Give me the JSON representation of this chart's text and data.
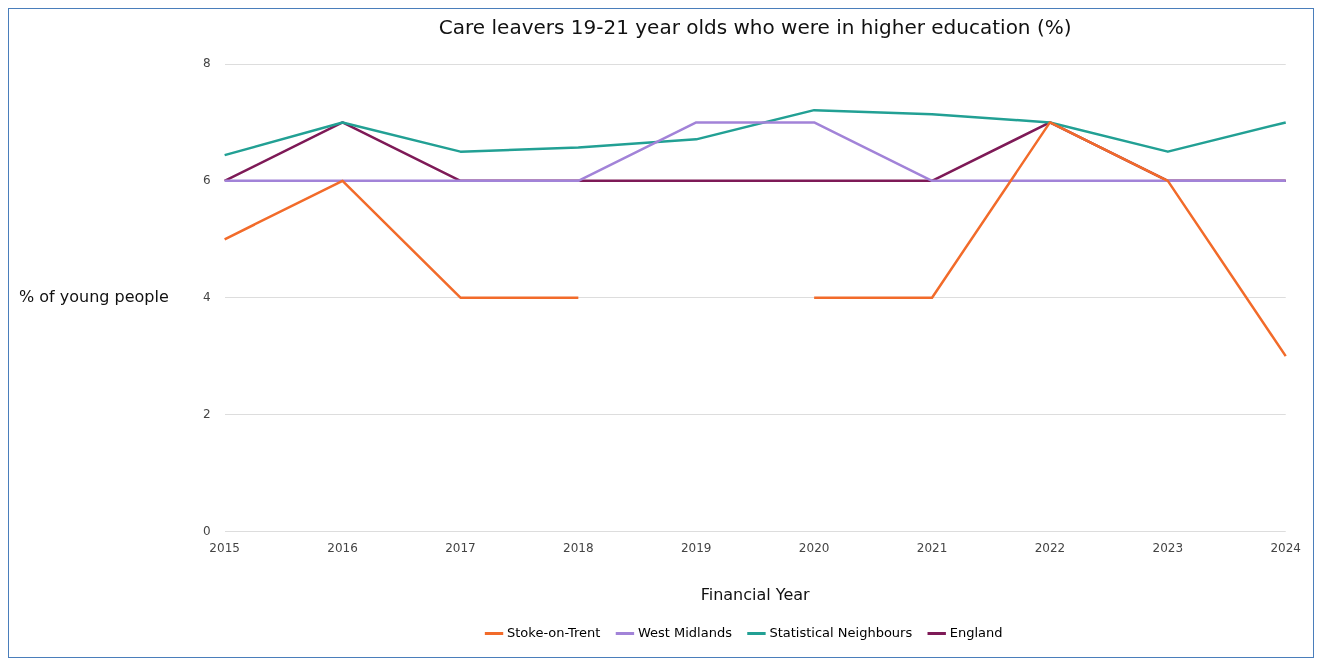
{
  "chart_data": {
    "type": "line",
    "title": "Care leavers 19-21 year olds who were in higher education (%)",
    "xlabel": "Financial Year",
    "ylabel": "% of young people",
    "categories": [
      "2015",
      "2016",
      "2017",
      "2018",
      "2019",
      "2020",
      "2021",
      "2022",
      "2023",
      "2024"
    ],
    "series": [
      {
        "name": "Stoke-on-Trent",
        "color": "#f26b2a",
        "values": [
          5,
          6,
          4,
          4,
          null,
          4,
          4,
          7,
          6,
          3
        ]
      },
      {
        "name": "West Midlands",
        "color": "#a283d8",
        "values": [
          6,
          6,
          6,
          6,
          7,
          7,
          6,
          6,
          6,
          6
        ]
      },
      {
        "name": "Statistical Neighbours",
        "color": "#22a094",
        "values": [
          6.44,
          7,
          6.5,
          6.57,
          6.71,
          7.21,
          7.14,
          7,
          6.5,
          7
        ]
      },
      {
        "name": "England",
        "color": "#7e1a57",
        "values": [
          6,
          7,
          6,
          6,
          6,
          6,
          6,
          7,
          6,
          6
        ]
      }
    ],
    "ylim": [
      0,
      8
    ],
    "yticks": [
      0,
      2,
      4,
      6,
      8
    ],
    "grid": "y",
    "legend": "bottom",
    "marker": "none",
    "line_style": "solid"
  }
}
